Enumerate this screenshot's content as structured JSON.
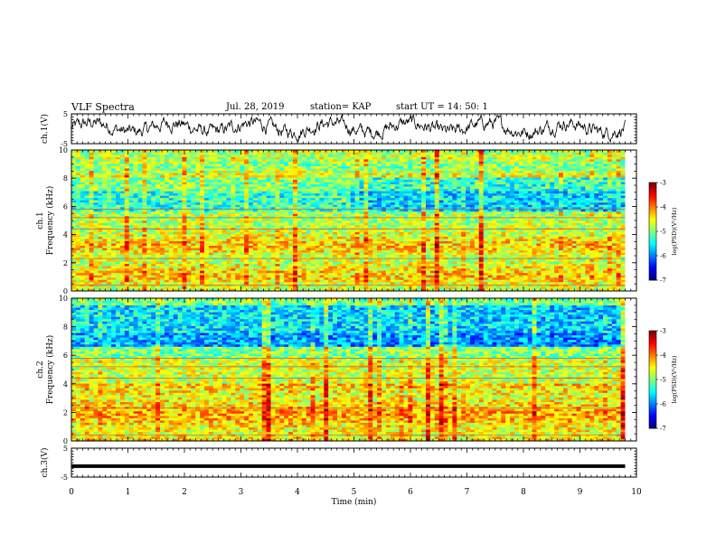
{
  "header": {
    "title": "VLF Spectra",
    "date": "Jul. 28, 2019",
    "station": "station= KAP",
    "start": "start UT = 14: 50: 1"
  },
  "chart_data": [
    {
      "type": "line",
      "ylabel": "ch.1(V)",
      "ylim": [
        -5,
        5
      ],
      "yticks": [
        "5",
        "-5"
      ],
      "xlim": [
        0,
        10
      ],
      "x_range_data": [
        0,
        9.8
      ],
      "description_level": 0.5
    },
    {
      "type": "heatmap",
      "ylabel_channel": "ch.1",
      "ylabel": "Frequency (kHz)",
      "ylim": [
        0,
        10
      ],
      "yticks": [
        "0",
        "2",
        "4",
        "6",
        "8",
        "10"
      ],
      "xlim": [
        0,
        10
      ],
      "x_range_data": [
        0,
        9.8
      ],
      "colorbar": {
        "label": "log(PSD)(V²/Hz)",
        "range": [
          -7,
          -3
        ],
        "ticks": [
          "-3",
          "-4",
          "-5",
          "-6",
          "-7"
        ]
      }
    },
    {
      "type": "heatmap",
      "ylabel_channel": "ch.2",
      "ylabel": "Frequency (kHz)",
      "ylim": [
        0,
        10
      ],
      "yticks": [
        "0",
        "2",
        "4",
        "6",
        "8",
        "10"
      ],
      "xlim": [
        0,
        10
      ],
      "x_range_data": [
        0,
        9.8
      ],
      "colorbar": {
        "label": "log(PSD)(V²/Hz)",
        "range": [
          -7,
          -3
        ],
        "ticks": [
          "-3",
          "-4",
          "-5",
          "-6",
          "-7"
        ]
      }
    },
    {
      "type": "line",
      "ylabel": "ch.3(V)",
      "ylim": [
        -5,
        5
      ],
      "yticks": [
        "5",
        "-5"
      ],
      "level": -1.2,
      "xlim": [
        0,
        10
      ],
      "x_range_data": [
        0,
        9.8
      ]
    }
  ],
  "xaxis": {
    "label": "Time (min)",
    "ticks": [
      "0",
      "1",
      "2",
      "3",
      "4",
      "5",
      "6",
      "7",
      "8",
      "9",
      "10"
    ]
  },
  "colors": {
    "line": "#000000",
    "grid_tick": "#000000"
  }
}
